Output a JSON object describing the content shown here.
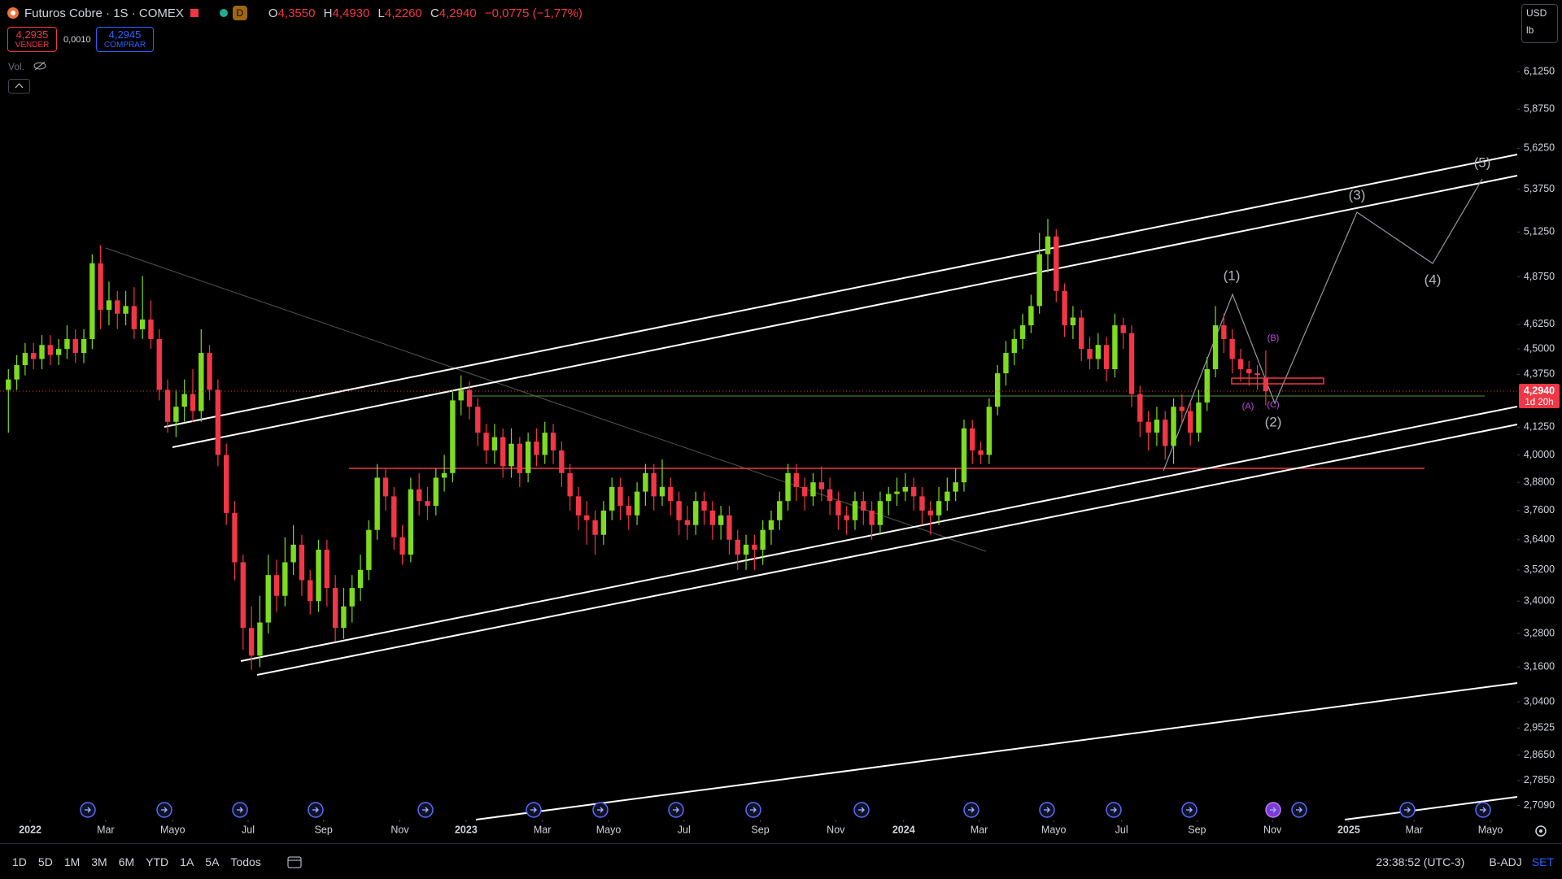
{
  "header": {
    "symbol": "Futuros Cobre · 1S · COMEX",
    "source_badge": "D",
    "ohlc": [
      {
        "key": "O",
        "value": "4,3550"
      },
      {
        "key": "H",
        "value": "4,4930"
      },
      {
        "key": "L",
        "value": "4,2260"
      },
      {
        "key": "C",
        "value": "4,2940"
      }
    ],
    "change": "−0,0775 (−1,77%)",
    "sell": {
      "price": "4,2935",
      "label": "VENDER"
    },
    "spread": "0,0010",
    "buy": {
      "price": "4,2945",
      "label": "COMPRAR"
    },
    "volume_label": "Vol.",
    "currency": "USD",
    "unit": "lb"
  },
  "chart_data": {
    "type": "candlestick",
    "log": true,
    "grid": false,
    "up_color": "#7ddc1f",
    "down_color": "#f23645",
    "ohlc": [
      [
        4.3,
        4.4,
        4.1,
        4.35
      ],
      [
        4.35,
        4.47,
        4.3,
        4.42
      ],
      [
        4.42,
        4.53,
        4.37,
        4.48
      ],
      [
        4.48,
        4.53,
        4.4,
        4.45
      ],
      [
        4.45,
        4.57,
        4.4,
        4.52
      ],
      [
        4.52,
        4.57,
        4.42,
        4.47
      ],
      [
        4.47,
        4.55,
        4.42,
        4.5
      ],
      [
        4.5,
        4.62,
        4.45,
        4.55
      ],
      [
        4.55,
        4.6,
        4.43,
        4.48
      ],
      [
        4.48,
        4.6,
        4.43,
        4.55
      ],
      [
        4.55,
        5.0,
        4.5,
        4.95
      ],
      [
        4.95,
        5.05,
        4.6,
        4.7
      ],
      [
        4.7,
        4.85,
        4.62,
        4.75
      ],
      [
        4.75,
        4.8,
        4.6,
        4.68
      ],
      [
        4.68,
        4.8,
        4.62,
        4.72
      ],
      [
        4.72,
        4.82,
        4.55,
        4.6
      ],
      [
        4.6,
        4.88,
        4.55,
        4.65
      ],
      [
        4.65,
        4.75,
        4.5,
        4.55
      ],
      [
        4.55,
        4.6,
        4.25,
        4.3
      ],
      [
        4.3,
        4.35,
        4.1,
        4.15
      ],
      [
        4.15,
        4.3,
        4.08,
        4.22
      ],
      [
        4.22,
        4.35,
        4.15,
        4.28
      ],
      [
        4.28,
        4.4,
        4.15,
        4.2
      ],
      [
        4.2,
        4.6,
        4.15,
        4.48
      ],
      [
        4.48,
        4.52,
        4.25,
        4.3
      ],
      [
        4.3,
        4.35,
        3.95,
        4.0
      ],
      [
        4.0,
        4.05,
        3.7,
        3.75
      ],
      [
        3.75,
        3.8,
        3.48,
        3.55
      ],
      [
        3.55,
        3.58,
        3.22,
        3.3
      ],
      [
        3.3,
        3.38,
        3.15,
        3.2
      ],
      [
        3.2,
        3.42,
        3.16,
        3.32
      ],
      [
        3.32,
        3.58,
        3.28,
        3.5
      ],
      [
        3.5,
        3.56,
        3.36,
        3.42
      ],
      [
        3.42,
        3.65,
        3.38,
        3.55
      ],
      [
        3.55,
        3.7,
        3.5,
        3.62
      ],
      [
        3.62,
        3.66,
        3.42,
        3.48
      ],
      [
        3.48,
        3.52,
        3.35,
        3.4
      ],
      [
        3.4,
        3.64,
        3.36,
        3.6
      ],
      [
        3.6,
        3.64,
        3.38,
        3.45
      ],
      [
        3.45,
        3.5,
        3.25,
        3.3
      ],
      [
        3.3,
        3.45,
        3.26,
        3.38
      ],
      [
        3.38,
        3.5,
        3.32,
        3.45
      ],
      [
        3.45,
        3.58,
        3.4,
        3.52
      ],
      [
        3.52,
        3.72,
        3.48,
        3.68
      ],
      [
        3.68,
        3.96,
        3.64,
        3.9
      ],
      [
        3.9,
        3.94,
        3.76,
        3.82
      ],
      [
        3.82,
        3.86,
        3.6,
        3.65
      ],
      [
        3.65,
        3.7,
        3.54,
        3.58
      ],
      [
        3.58,
        3.9,
        3.55,
        3.85
      ],
      [
        3.85,
        3.92,
        3.74,
        3.8
      ],
      [
        3.8,
        3.86,
        3.72,
        3.78
      ],
      [
        3.78,
        3.94,
        3.74,
        3.9
      ],
      [
        3.9,
        4.0,
        3.84,
        3.92
      ],
      [
        3.92,
        4.3,
        3.88,
        4.25
      ],
      [
        4.25,
        4.37,
        4.18,
        4.3
      ],
      [
        4.3,
        4.34,
        4.16,
        4.22
      ],
      [
        4.22,
        4.26,
        4.04,
        4.1
      ],
      [
        4.1,
        4.14,
        3.96,
        4.02
      ],
      [
        4.02,
        4.14,
        3.96,
        4.08
      ],
      [
        4.08,
        4.12,
        3.9,
        3.95
      ],
      [
        3.95,
        4.12,
        3.9,
        4.05
      ],
      [
        4.05,
        4.08,
        3.86,
        3.92
      ],
      [
        3.92,
        4.1,
        3.88,
        4.06
      ],
      [
        4.06,
        4.12,
        3.95,
        4.0
      ],
      [
        4.0,
        4.15,
        3.96,
        4.1
      ],
      [
        4.1,
        4.14,
        3.96,
        4.02
      ],
      [
        4.02,
        4.06,
        3.86,
        3.92
      ],
      [
        3.92,
        3.96,
        3.76,
        3.82
      ],
      [
        3.82,
        3.86,
        3.68,
        3.74
      ],
      [
        3.74,
        3.8,
        3.62,
        3.72
      ],
      [
        3.72,
        3.76,
        3.58,
        3.66
      ],
      [
        3.66,
        3.8,
        3.62,
        3.76
      ],
      [
        3.76,
        3.9,
        3.72,
        3.86
      ],
      [
        3.86,
        3.9,
        3.72,
        3.78
      ],
      [
        3.78,
        3.82,
        3.68,
        3.74
      ],
      [
        3.74,
        3.88,
        3.7,
        3.84
      ],
      [
        3.84,
        3.96,
        3.78,
        3.92
      ],
      [
        3.92,
        3.96,
        3.76,
        3.82
      ],
      [
        3.82,
        3.98,
        3.78,
        3.86
      ],
      [
        3.86,
        3.9,
        3.74,
        3.8
      ],
      [
        3.8,
        3.84,
        3.66,
        3.72
      ],
      [
        3.72,
        3.78,
        3.64,
        3.7
      ],
      [
        3.7,
        3.84,
        3.66,
        3.8
      ],
      [
        3.8,
        3.84,
        3.7,
        3.76
      ],
      [
        3.76,
        3.8,
        3.64,
        3.7
      ],
      [
        3.7,
        3.78,
        3.64,
        3.74
      ],
      [
        3.74,
        3.78,
        3.58,
        3.64
      ],
      [
        3.64,
        3.68,
        3.52,
        3.58
      ],
      [
        3.58,
        3.66,
        3.52,
        3.62
      ],
      [
        3.62,
        3.66,
        3.52,
        3.6
      ],
      [
        3.6,
        3.72,
        3.54,
        3.68
      ],
      [
        3.68,
        3.76,
        3.62,
        3.72
      ],
      [
        3.72,
        3.84,
        3.68,
        3.8
      ],
      [
        3.8,
        3.96,
        3.76,
        3.92
      ],
      [
        3.92,
        3.96,
        3.8,
        3.86
      ],
      [
        3.86,
        3.9,
        3.76,
        3.82
      ],
      [
        3.82,
        3.92,
        3.78,
        3.88
      ],
      [
        3.88,
        3.95,
        3.8,
        3.85
      ],
      [
        3.85,
        3.9,
        3.74,
        3.8
      ],
      [
        3.8,
        3.84,
        3.68,
        3.74
      ],
      [
        3.74,
        3.78,
        3.66,
        3.72
      ],
      [
        3.72,
        3.84,
        3.68,
        3.8
      ],
      [
        3.8,
        3.84,
        3.7,
        3.76
      ],
      [
        3.76,
        3.8,
        3.64,
        3.7
      ],
      [
        3.7,
        3.84,
        3.66,
        3.8
      ],
      [
        3.8,
        3.86,
        3.74,
        3.83
      ],
      [
        3.83,
        3.9,
        3.78,
        3.84
      ],
      [
        3.84,
        3.92,
        3.8,
        3.86
      ],
      [
        3.86,
        3.9,
        3.76,
        3.82
      ],
      [
        3.82,
        3.86,
        3.7,
        3.76
      ],
      [
        3.76,
        3.8,
        3.66,
        3.74
      ],
      [
        3.74,
        3.86,
        3.7,
        3.8
      ],
      [
        3.8,
        3.9,
        3.76,
        3.84
      ],
      [
        3.84,
        3.94,
        3.8,
        3.88
      ],
      [
        3.88,
        4.16,
        3.84,
        4.12
      ],
      [
        4.12,
        4.16,
        3.96,
        4.02
      ],
      [
        4.02,
        4.06,
        3.96,
        4.0
      ],
      [
        4.0,
        4.26,
        3.96,
        4.22
      ],
      [
        4.22,
        4.42,
        4.18,
        4.38
      ],
      [
        4.38,
        4.54,
        4.32,
        4.48
      ],
      [
        4.48,
        4.6,
        4.42,
        4.55
      ],
      [
        4.55,
        4.68,
        4.5,
        4.62
      ],
      [
        4.62,
        4.78,
        4.58,
        4.72
      ],
      [
        4.72,
        5.12,
        4.68,
        5.0
      ],
      [
        5.0,
        5.2,
        4.9,
        5.1
      ],
      [
        5.1,
        5.14,
        4.74,
        4.8
      ],
      [
        4.8,
        4.84,
        4.56,
        4.62
      ],
      [
        4.62,
        4.72,
        4.55,
        4.66
      ],
      [
        4.66,
        4.7,
        4.44,
        4.5
      ],
      [
        4.5,
        4.56,
        4.4,
        4.45
      ],
      [
        4.45,
        4.58,
        4.4,
        4.52
      ],
      [
        4.52,
        4.56,
        4.34,
        4.4
      ],
      [
        4.4,
        4.68,
        4.36,
        4.62
      ],
      [
        4.62,
        4.66,
        4.5,
        4.58
      ],
      [
        4.58,
        4.62,
        4.22,
        4.28
      ],
      [
        4.28,
        4.32,
        4.08,
        4.15
      ],
      [
        4.15,
        4.2,
        4.02,
        4.1
      ],
      [
        4.1,
        4.22,
        4.04,
        4.16
      ],
      [
        4.16,
        4.2,
        3.98,
        4.04
      ],
      [
        4.04,
        4.26,
        3.96,
        4.22
      ],
      [
        4.22,
        4.28,
        4.14,
        4.2
      ],
      [
        4.2,
        4.24,
        4.04,
        4.1
      ],
      [
        4.1,
        4.3,
        4.06,
        4.24
      ],
      [
        4.24,
        4.46,
        4.2,
        4.4
      ],
      [
        4.4,
        4.72,
        4.36,
        4.62
      ],
      [
        4.62,
        4.68,
        4.48,
        4.55
      ],
      [
        4.55,
        4.6,
        4.38,
        4.45
      ],
      [
        4.45,
        4.5,
        4.34,
        4.4
      ],
      [
        4.4,
        4.44,
        4.32,
        4.38
      ],
      [
        4.38,
        4.42,
        4.3,
        4.3715
      ],
      [
        4.355,
        4.493,
        4.226,
        4.294
      ]
    ],
    "xlim": [
      -1,
      180
    ],
    "xticks": [
      {
        "value": 2.6,
        "label": "2022"
      },
      {
        "value": 11.6,
        "label": "Mar"
      },
      {
        "value": 19.6,
        "label": "Mayo"
      },
      {
        "value": 28.6,
        "label": "Jul"
      },
      {
        "value": 37.6,
        "label": "Sep"
      },
      {
        "value": 46.7,
        "label": "Nov"
      },
      {
        "value": 54.6,
        "label": "2023"
      },
      {
        "value": 63.7,
        "label": "Mar"
      },
      {
        "value": 71.6,
        "label": "Mayo"
      },
      {
        "value": 80.6,
        "label": "Jul"
      },
      {
        "value": 89.7,
        "label": "Sep"
      },
      {
        "value": 98.7,
        "label": "Nov"
      },
      {
        "value": 106.8,
        "label": "2024"
      },
      {
        "value": 115.8,
        "label": "Mar"
      },
      {
        "value": 124.7,
        "label": "Mayo"
      },
      {
        "value": 132.8,
        "label": "Jul"
      },
      {
        "value": 141.8,
        "label": "Sep"
      },
      {
        "value": 150.8,
        "label": "Nov"
      },
      {
        "value": 159.9,
        "label": "2025"
      },
      {
        "value": 167.7,
        "label": "Mar"
      },
      {
        "value": 176.8,
        "label": "Mayo"
      }
    ],
    "ylim": [
      2.669,
      6.633
    ],
    "yticks": [
      {
        "value": 6.125,
        "label": "6,1250"
      },
      {
        "value": 5.875,
        "label": "5,8750"
      },
      {
        "value": 5.625,
        "label": "5,6250"
      },
      {
        "value": 5.375,
        "label": "5,3750"
      },
      {
        "value": 5.125,
        "label": "5,1250"
      },
      {
        "value": 4.875,
        "label": "4,8750"
      },
      {
        "value": 4.625,
        "label": "4,6250"
      },
      {
        "value": 4.5,
        "label": "4,5000"
      },
      {
        "value": 4.375,
        "label": "4,3750"
      },
      {
        "value": 4.125,
        "label": "4,1250"
      },
      {
        "value": 4.0,
        "label": "4,0000"
      },
      {
        "value": 3.88,
        "label": "3,8800"
      },
      {
        "value": 3.76,
        "label": "3,7600"
      },
      {
        "value": 3.64,
        "label": "3,6400"
      },
      {
        "value": 3.52,
        "label": "3,5200"
      },
      {
        "value": 3.4,
        "label": "3,4000"
      },
      {
        "value": 3.28,
        "label": "3,2800"
      },
      {
        "value": 3.16,
        "label": "3,1600"
      },
      {
        "value": 3.04,
        "label": "3,0400"
      },
      {
        "value": 2.9525,
        "label": "2,9525"
      },
      {
        "value": 2.865,
        "label": "2,8650"
      },
      {
        "value": 2.785,
        "label": "2,7850"
      },
      {
        "value": 2.709,
        "label": "2,7090"
      }
    ],
    "last_price": {
      "value": 4.294,
      "label": "4,2940",
      "countdown": "1d 20h",
      "color": "#f23645"
    },
    "annotations": [
      "(1)",
      "(2)",
      "(3)",
      "(4)",
      "(5)",
      "(A)",
      "(B)",
      "(C)"
    ]
  },
  "toolbar": {
    "ranges": [
      "1D",
      "5D",
      "1M",
      "3M",
      "6M",
      "YTD",
      "1A",
      "5A",
      "Todos"
    ],
    "clock": "23:38:52 (UTC-3)",
    "adjust": "B-ADJ",
    "session": "SET"
  }
}
